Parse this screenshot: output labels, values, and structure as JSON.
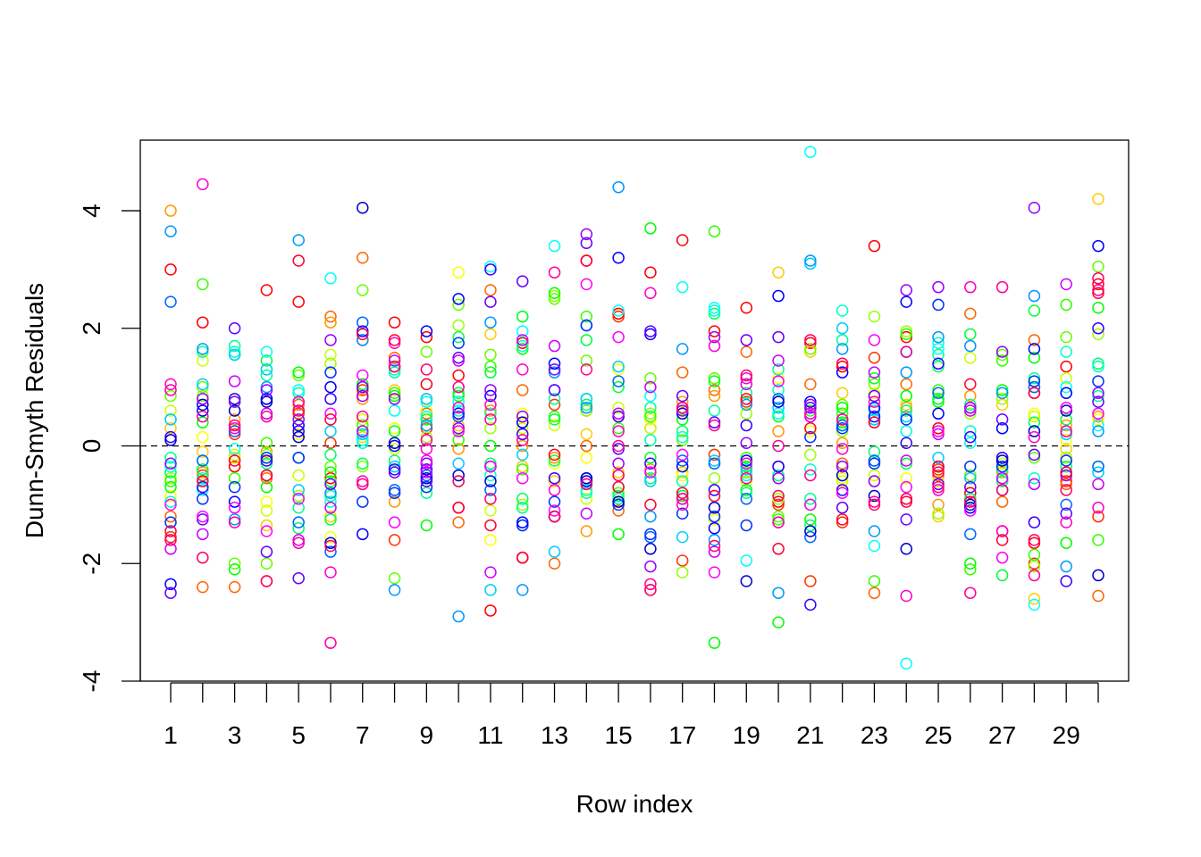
{
  "chart_data": {
    "type": "scatter",
    "title": "",
    "xlabel": "Row index",
    "ylabel": "Dunn-Smyth Residuals",
    "xlim": [
      0.05,
      30.95
    ],
    "ylim": [
      -4,
      5.2
    ],
    "x_ticks": [
      1,
      3,
      5,
      7,
      9,
      11,
      13,
      15,
      17,
      19,
      21,
      23,
      25,
      27,
      29
    ],
    "x_tick_labels": [
      "1",
      "3",
      "5",
      "7",
      "9",
      "11",
      "13",
      "15",
      "17",
      "19",
      "21",
      "23",
      "25",
      "27",
      "29"
    ],
    "x_tick_marks": [
      1,
      2,
      3,
      4,
      5,
      6,
      7,
      8,
      9,
      10,
      11,
      12,
      13,
      14,
      15,
      16,
      17,
      18,
      19,
      20,
      21,
      22,
      23,
      24,
      25,
      26,
      27,
      28,
      29,
      30
    ],
    "y_ticks": [
      -4,
      -2,
      0,
      2,
      4
    ],
    "y_tick_labels": [
      "-4",
      "-2",
      "0",
      "2",
      "4"
    ],
    "reference_line": {
      "y": 0,
      "style": "dashed",
      "color": "#000000"
    },
    "marker": "open-circle",
    "grid": false,
    "legend": "none",
    "series": [
      {
        "color": "#FF0000",
        "values": [
          3.0,
          2.1,
          -0.35,
          2.65,
          2.45,
          -0.55,
          1.8,
          2.1,
          1.85,
          1.2,
          -2.8,
          1.75,
          -1.2,
          3.15,
          2.25,
          2.95,
          3.5,
          1.95,
          2.35,
          -0.95,
          1.75,
          1.35,
          3.4,
          1.85,
          0.3,
          -0.8,
          -1.45,
          -1.65,
          1.35,
          2.75
        ]
      },
      {
        "color": "#FF3300",
        "values": [
          -1.55,
          -0.5,
          0.2,
          -2.3,
          0.55,
          0.05,
          0.95,
          -1.6,
          0.3,
          -1.05,
          -0.35,
          -1.9,
          0.7,
          0.6,
          2.2,
          0.3,
          -1.95,
          -0.15,
          0.75,
          -1.0,
          -2.3,
          -1.3,
          1.5,
          -0.9,
          -0.4,
          -0.9,
          -0.6,
          -2.0,
          -0.6,
          -1.2
        ]
      },
      {
        "color": "#FF6600",
        "values": [
          -1.2,
          -2.4,
          -2.4,
          -0.55,
          0.7,
          2.2,
          3.2,
          1.5,
          0.55,
          -1.3,
          2.65,
          0.95,
          -2.0,
          0.0,
          -1.1,
          -2.45,
          1.25,
          0.95,
          1.6,
          -1.3,
          1.05,
          -0.3,
          -2.5,
          1.05,
          -0.5,
          2.25,
          -0.95,
          1.8,
          -0.65,
          -2.55
        ]
      },
      {
        "color": "#FF9900",
        "values": [
          4.0,
          -0.45,
          0.45,
          -0.1,
          0.75,
          2.1,
          0.8,
          -0.95,
          0.8,
          -0.05,
          0.6,
          0.0,
          -0.2,
          -1.45,
          0.5,
          -0.4,
          0.75,
          0.85,
          -0.3,
          0.25,
          -1.0,
          0.05,
          -0.25,
          0.65,
          -1.0,
          0.85,
          -0.45,
          1.0,
          0.35,
          0.5
        ]
      },
      {
        "color": "#FFCC00",
        "values": [
          0.3,
          -0.1,
          -0.2,
          -1.35,
          0.9,
          -1.2,
          0.15,
          0.95,
          -0.5,
          0.35,
          1.9,
          -0.35,
          -0.6,
          0.2,
          -0.45,
          0.1,
          -0.45,
          -0.3,
          -0.75,
          2.95,
          1.6,
          0.9,
          -0.6,
          0.7,
          -1.2,
          -0.5,
          0.7,
          -2.6,
          -0.05,
          4.2
        ]
      },
      {
        "color": "#FFFF00",
        "values": [
          -0.85,
          0.15,
          0.6,
          -0.95,
          0.2,
          -1.55,
          0.35,
          0.3,
          0.6,
          2.95,
          -1.6,
          0.55,
          -0.3,
          -0.2,
          1.3,
          0.45,
          -0.5,
          -1.25,
          1.05,
          1.15,
          0.25,
          -0.55,
          0.9,
          -0.55,
          -0.7,
          0.65,
          -0.4,
          0.55,
          0.1,
          0.45
        ]
      },
      {
        "color": "#CCFF00",
        "values": [
          0.6,
          1.45,
          -0.15,
          -1.1,
          -0.5,
          1.55,
          0.45,
          -0.05,
          -0.7,
          0.3,
          -1.1,
          0.3,
          0.35,
          -0.9,
          0.65,
          0.3,
          0.6,
          1.15,
          -0.6,
          -0.35,
          0.5,
          -0.6,
          -0.5,
          0.85,
          -0.6,
          1.5,
          -0.3,
          0.5,
          1.15,
          -0.65
        ]
      },
      {
        "color": "#99FF00",
        "values": [
          -0.55,
          0.85,
          0.8,
          -0.15,
          -0.85,
          1.4,
          -0.35,
          0.6,
          0.15,
          2.05,
          0.3,
          -1.0,
          2.55,
          0.6,
          -0.8,
          0.55,
          -2.15,
          -0.55,
          0.55,
          -0.9,
          -0.15,
          0.25,
          2.2,
          1.95,
          -1.15,
          0.55,
          0.8,
          -2.05,
          -0.2,
          1.9
        ]
      },
      {
        "color": "#66FF00",
        "values": [
          0.85,
          1.0,
          -2.0,
          -2.0,
          1.2,
          -0.35,
          2.65,
          -2.25,
          1.6,
          2.4,
          1.55,
          2.2,
          2.5,
          1.45,
          -0.8,
          1.15,
          0.1,
          1.15,
          -0.45,
          -1.2,
          1.65,
          0.7,
          1.05,
          1.9,
          0.8,
          -0.5,
          1.55,
          -0.2,
          1.85,
          3.05
        ]
      },
      {
        "color": "#33FF00",
        "values": [
          -0.6,
          2.75,
          -0.55,
          0.05,
          0.6,
          -0.6,
          0.35,
          0.9,
          1.05,
          0.1,
          1.35,
          -0.4,
          0.5,
          2.2,
          0.3,
          0.5,
          -0.85,
          3.65,
          -0.2,
          -1.25,
          0.6,
          0.55,
          -2.3,
          1.9,
          0.95,
          -2.1,
          1.45,
          -1.85,
          2.4,
          -1.6
        ]
      },
      {
        "color": "#00FF00",
        "values": [
          -0.7,
          0.4,
          -2.1,
          -0.7,
          1.25,
          -0.45,
          1.05,
          0.85,
          -1.35,
          0.85,
          0.0,
          1.65,
          2.6,
          0.8,
          -1.5,
          3.7,
          0.45,
          -3.35,
          -0.35,
          -3.0,
          -1.25,
          0.65,
          0.45,
          0.85,
          0.75,
          -2.0,
          0.95,
          1.5,
          -1.65,
          2.35
        ]
      },
      {
        "color": "#00FF33",
        "values": [
          -0.45,
          -0.4,
          0.75,
          1.45,
          -0.2,
          -1.25,
          0.25,
          0.25,
          0.45,
          0.9,
          1.25,
          2.2,
          0.45,
          1.8,
          1.0,
          -0.2,
          -0.85,
          1.1,
          -0.75,
          0.5,
          -1.0,
          0.4,
          1.15,
          -0.3,
          0.8,
          1.9,
          -2.2,
          2.3,
          0.45,
          -0.35
        ]
      },
      {
        "color": "#00FF66",
        "values": [
          0.45,
          -0.25,
          1.55,
          -0.3,
          -1.4,
          -0.15,
          -0.3,
          -0.25,
          -0.3,
          1.85,
          -0.3,
          -0.9,
          -0.25,
          0.7,
          -0.85,
          -0.55,
          0.25,
          2.25,
          0.9,
          -0.5,
          -1.35,
          0.35,
          -0.1,
          0.6,
          1.35,
          -0.9,
          -0.4,
          0.4,
          -0.35,
          1.4
        ]
      },
      {
        "color": "#00FF99",
        "values": [
          -0.2,
          1.6,
          1.7,
          1.2,
          -1.05,
          -0.85,
          0.1,
          1.25,
          -0.8,
          -0.6,
          0.55,
          -1.05,
          0.8,
          -0.8,
          -0.9,
          0.65,
          -0.6,
          0.6,
          -0.8,
          1.3,
          -0.9,
          1.8,
          -0.25,
          1.6,
          1.55,
          0.7,
          -0.6,
          1.15,
          0.9,
          0.85
        ]
      },
      {
        "color": "#00FFCC",
        "values": [
          -0.95,
          -0.55,
          1.6,
          1.3,
          0.9,
          -0.95,
          0.05,
          1.3,
          0.5,
          0.6,
          -0.5,
          1.7,
          1.3,
          -0.75,
          -0.7,
          0.1,
          0.15,
          2.3,
          -0.5,
          0.95,
          -0.4,
          2.3,
          0.6,
          0.25,
          1.75,
          0.25,
          0.9,
          -0.55,
          1.6,
          1.35
        ]
      },
      {
        "color": "#00FFFF",
        "values": [
          -0.35,
          -0.75,
          -0.05,
          1.6,
          0.95,
          2.85,
          0.1,
          0.6,
          0.75,
          0.75,
          3.05,
          1.95,
          3.4,
          -0.55,
          2.3,
          0.85,
          2.7,
          2.35,
          -1.95,
          0.55,
          5.0,
          -0.35,
          -1.7,
          -3.7,
          1.65,
          0.05,
          0.3,
          -2.7,
          1.0,
          0.35
        ]
      },
      {
        "color": "#00CCFF",
        "values": [
          0.45,
          1.05,
          1.55,
          1.3,
          -0.75,
          0.25,
          0.2,
          -0.35,
          0.8,
          -0.3,
          -2.45,
          -0.15,
          -1.8,
          0.8,
          1.35,
          -0.6,
          -1.55,
          -0.25,
          -0.4,
          0.65,
          3.1,
          2.0,
          0.45,
          0.5,
          -0.2,
          -0.55,
          -0.2,
          -0.65,
          0.2,
          -0.45
        ]
      },
      {
        "color": "#0099FF",
        "values": [
          3.65,
          1.65,
          -1.25,
          1.0,
          3.5,
          -0.8,
          1.8,
          -2.45,
          0.35,
          -2.9,
          2.1,
          -2.45,
          1.25,
          0.65,
          4.4,
          -1.2,
          1.65,
          -1.6,
          0.7,
          -2.5,
          3.15,
          1.65,
          -1.45,
          1.25,
          1.85,
          1.7,
          0.9,
          2.55,
          -2.05,
          0.25
        ]
      },
      {
        "color": "#0066FF",
        "values": [
          2.45,
          -0.25,
          0.25,
          0.8,
          -1.3,
          -1.8,
          2.1,
          -0.75,
          -0.5,
          0.5,
          -0.75,
          -1.35,
          0.95,
          2.05,
          1.1,
          -1.55,
          -0.25,
          -0.3,
          -0.9,
          0.8,
          -1.55,
          0.35,
          -0.25,
          1.6,
          0.9,
          -1.5,
          -0.75,
          1.0,
          -1.0,
          -0.35
        ]
      },
      {
        "color": "#0033FF",
        "values": [
          -1.3,
          -0.9,
          -0.7,
          -0.2,
          -0.2,
          1.25,
          -0.95,
          -0.8,
          -0.7,
          1.75,
          -0.35,
          -1.35,
          -0.95,
          2.05,
          -1.0,
          -1.5,
          -1.15,
          -1.2,
          -1.35,
          -0.35,
          0.15,
          0.3,
          -0.3,
          0.45,
          2.4,
          -0.35,
          -0.35,
          1.1,
          -0.25,
          1.1
        ]
      },
      {
        "color": "#0000FF",
        "values": [
          -2.35,
          0.6,
          -0.95,
          0.8,
          0.35,
          1.0,
          -1.5,
          0.0,
          1.95,
          2.5,
          0.85,
          -1.3,
          1.4,
          -0.6,
          3.2,
          1.9,
          -0.35,
          -1.4,
          -0.25,
          2.55,
          0.75,
          1.25,
          0.65,
          2.45,
          0.55,
          -1.05,
          0.3,
          1.65,
          0.9,
          3.4
        ]
      },
      {
        "color": "#3300FF",
        "values": [
          0.15,
          -0.7,
          0.8,
          -0.25,
          0.25,
          0.8,
          1.95,
          -0.4,
          -0.4,
          0.55,
          3.0,
          0.2,
          -0.55,
          -0.55,
          0.5,
          -0.3,
          -0.9,
          -0.75,
          0.35,
          -0.35,
          -2.7,
          -0.75,
          0.5,
          0.05,
          1.4,
          0.15,
          -0.2,
          -1.3,
          -2.3,
          2.0
        ]
      },
      {
        "color": "#0000CC",
        "values": [
          0.1,
          0.7,
          0.6,
          0.75,
          0.15,
          -1.65,
          4.05,
          0.05,
          -0.55,
          -0.5,
          -0.6,
          0.4,
          -1.2,
          -0.55,
          -0.95,
          -1.75,
          0.55,
          -1.05,
          -2.3,
          0.75,
          -1.45,
          -0.5,
          -0.85,
          -1.75,
          -0.35,
          -1.0,
          -0.25,
          0.25,
          0.6,
          -2.2
        ]
      },
      {
        "color": "#6600FF",
        "values": [
          -2.5,
          -1.25,
          2.0,
          -1.8,
          -2.25,
          -0.65,
          1.0,
          -0.45,
          -0.6,
          1.5,
          2.45,
          2.8,
          0.95,
          3.45,
          -0.05,
          1.95,
          0.85,
          0.4,
          1.8,
          1.85,
          0.65,
          -1.05,
          0.85,
          -1.25,
          -0.65,
          -0.7,
          0.45,
          -0.15,
          -1.15,
          0.75
        ]
      },
      {
        "color": "#9900FF",
        "values": [
          -0.3,
          0.8,
          0.75,
          0.95,
          0.45,
          1.8,
          0.85,
          0.8,
          -0.3,
          0.3,
          0.95,
          0.5,
          1.3,
          3.6,
          -0.3,
          -2.05,
          0.6,
          1.85,
          0.05,
          -0.55,
          0.7,
          -0.35,
          -0.6,
          2.65,
          2.7,
          0.65,
          1.6,
          4.05,
          -0.5,
          0.9
        ]
      },
      {
        "color": "#CC00FF",
        "values": [
          -1.75,
          -1.5,
          1.1,
          0.55,
          -1.6,
          -1.05,
          0.25,
          1.45,
          -0.45,
          1.45,
          -2.15,
          1.8,
          1.7,
          -1.15,
          0.55,
          1.0,
          0.65,
          -1.8,
          1.05,
          1.45,
          0.5,
          0.45,
          1.25,
          -0.25,
          0.2,
          0.6,
          -0.55,
          -0.65,
          2.75,
          -0.65
        ]
      },
      {
        "color": "#FF00FF",
        "values": [
          -1.0,
          -1.2,
          -1.05,
          -1.45,
          -0.9,
          0.55,
          1.2,
          -1.3,
          -0.25,
          0.25,
          -0.35,
          -0.55,
          -1.1,
          2.75,
          1.85,
          -0.45,
          -0.15,
          -2.15,
          -0.3,
          1.1,
          -1.0,
          -0.8,
          1.8,
          -0.7,
          0.25,
          -1.1,
          -1.9,
          0.9,
          0.65,
          0.55
        ]
      },
      {
        "color": "#FF00CC",
        "values": [
          1.05,
          4.45,
          0.3,
          -0.5,
          0.75,
          -2.15,
          -0.6,
          1.75,
          -0.05,
          0.65,
          0.7,
          1.3,
          -0.75,
          -0.65,
          0.25,
          2.6,
          -1.0,
          1.7,
          1.15,
          -1.3,
          0.55,
          -0.05,
          0.75,
          -2.55,
          -0.75,
          2.7,
          -1.45,
          0.15,
          -1.3,
          -1.05
        ]
      },
      {
        "color": "#FF0099",
        "values": [
          0.95,
          0.5,
          -1.3,
          0.5,
          -1.65,
          -3.35,
          0.5,
          1.35,
          0.1,
          1.0,
          0.45,
          0.1,
          2.95,
          1.3,
          0.0,
          -2.35,
          -0.9,
          0.35,
          -0.55,
          0.0,
          -0.5,
          0.45,
          -0.95,
          1.6,
          -0.7,
          -2.5,
          2.7,
          -2.2,
          0.25,
          2.65
        ]
      },
      {
        "color": "#FF0066",
        "values": [
          -1.6,
          -1.9,
          0.35,
          -2.3,
          0.6,
          -1.7,
          -0.65,
          1.35,
          1.3,
          -0.6,
          -0.9,
          -1.9,
          -1.2,
          -0.65,
          -0.5,
          -2.45,
          0.65,
          -1.7,
          1.2,
          -0.85,
          1.8,
          1.4,
          -1.0,
          -0.9,
          -0.45,
          -0.95,
          -0.75,
          -1.6,
          -0.75,
          2.85
        ]
      },
      {
        "color": "#FF0033",
        "values": [
          -1.45,
          -0.6,
          -0.25,
          -0.5,
          3.15,
          0.45,
          1.9,
          1.8,
          1.05,
          -1.05,
          -1.35,
          -1.9,
          -0.15,
          3.15,
          -0.7,
          -1.0,
          -0.8,
          -0.85,
          0.8,
          -1.75,
          0.3,
          -1.25,
          0.4,
          -0.95,
          -0.35,
          1.05,
          -1.6,
          0.9,
          -0.45,
          2.6
        ]
      }
    ]
  }
}
